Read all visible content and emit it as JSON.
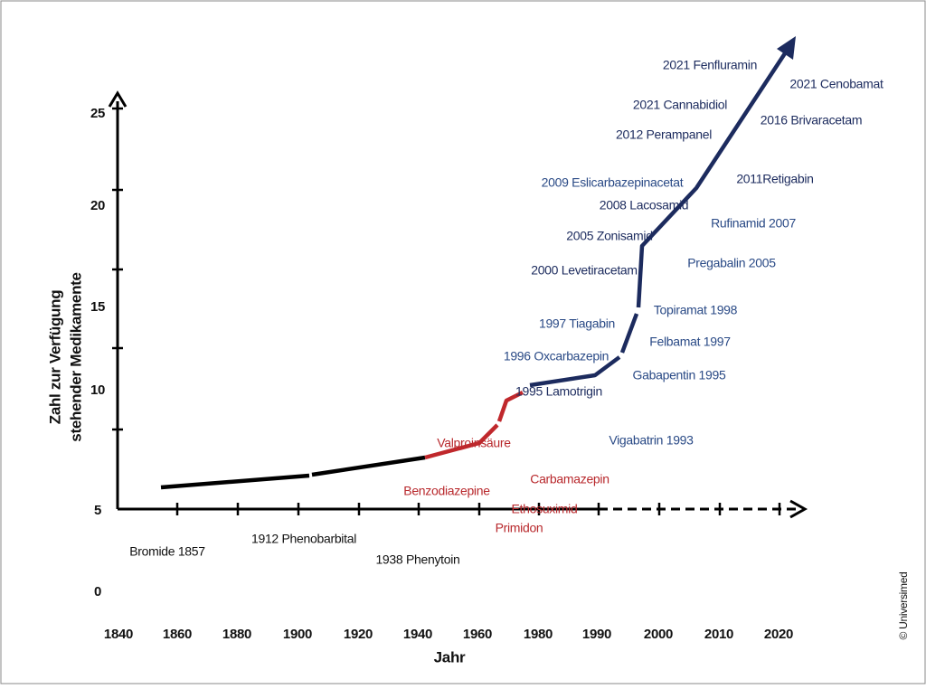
{
  "y_axis": {
    "title_lines": [
      "Zahl zur Verfügung",
      "stehender Medikamente"
    ],
    "labels": [
      "25",
      "20",
      "15",
      "10",
      "5",
      "0"
    ]
  },
  "x_axis": {
    "title": "Jahr",
    "labels": [
      "1840",
      "1860",
      "1880",
      "1900",
      "1920",
      "1940",
      "1960",
      "1980",
      "1990",
      "2000",
      "2010",
      "2020"
    ]
  },
  "annotations": {
    "black": [
      "Bromide 1857",
      "1912 Phenobarbital",
      "1938 Phenytoin"
    ],
    "red": [
      "Valproinsäure",
      "Benzodiazepine",
      "Carbamazepin",
      "Ethosuximid",
      "Primidon"
    ],
    "blue": [
      "2021 Fenfluramin",
      "2021 Cenobamat",
      "2021 Cannabidiol",
      "2016 Brivaracetam",
      "2012 Perampanel",
      "2009 Eslicarbazepinacetat",
      "2011Retigabin",
      "2008 Lacosamid",
      "Rufinamid 2007",
      "2005 Zonisamid",
      "Pregabalin 2005",
      "2000 Levetiracetam",
      "Topiramat 1998",
      "1997 Tiagabin",
      "Felbamat 1997",
      "1996 Oxcarbazepin",
      "Gabapentin 1995",
      "1995 Lamotrigin",
      "Vigabatrin 1993"
    ]
  },
  "copyright": "© Universimed"
}
